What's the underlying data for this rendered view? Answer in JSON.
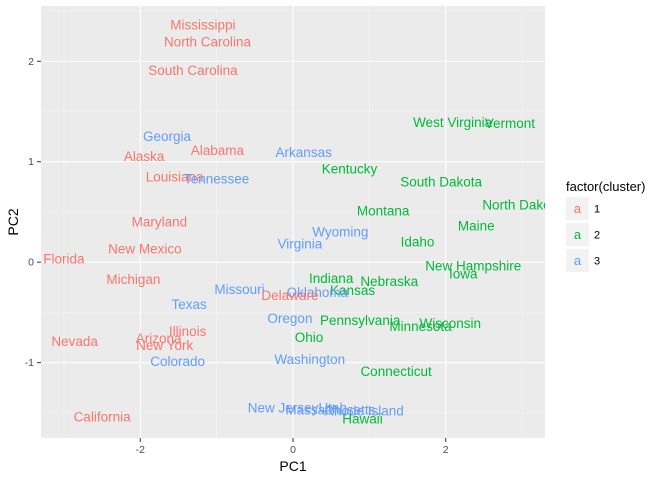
{
  "chart_data": {
    "type": "scatter",
    "xlabel": "PC1",
    "ylabel": "PC2",
    "xlim": [
      -3.3,
      3.3
    ],
    "ylim": [
      -1.75,
      2.55
    ],
    "x_ticks": [
      -2,
      0,
      2
    ],
    "x_tick_labels": [
      "-2",
      "0",
      "2"
    ],
    "y_ticks": [
      -1,
      0,
      1,
      2
    ],
    "y_tick_labels": [
      "-1",
      "0",
      "1",
      "2"
    ],
    "grid": true,
    "legend": {
      "title": "factor(cluster)",
      "placement": "right",
      "key_glyph": "a",
      "items": [
        {
          "label": "1",
          "color": "#F8766D"
        },
        {
          "label": "2",
          "color": "#00BA38"
        },
        {
          "label": "3",
          "color": "#619CFF"
        }
      ]
    },
    "colors": {
      "1": "#F8766D",
      "2": "#00BA38",
      "3": "#619CFF"
    },
    "points": [
      {
        "label": "Mississippi",
        "x": -1.18,
        "y": 2.36,
        "cluster": "1"
      },
      {
        "label": "North Carolina",
        "x": -1.12,
        "y": 2.19,
        "cluster": "1"
      },
      {
        "label": "South Carolina",
        "x": -1.31,
        "y": 1.91,
        "cluster": "1"
      },
      {
        "label": "Georgia",
        "x": -1.65,
        "y": 1.25,
        "cluster": "3"
      },
      {
        "label": "Alaska",
        "x": -1.95,
        "y": 1.05,
        "cluster": "1"
      },
      {
        "label": "Alabama",
        "x": -0.99,
        "y": 1.11,
        "cluster": "1"
      },
      {
        "label": "Arkansas",
        "x": 0.14,
        "y": 1.09,
        "cluster": "3"
      },
      {
        "label": "Louisiana",
        "x": -1.55,
        "y": 0.85,
        "cluster": "1"
      },
      {
        "label": "Tennessee",
        "x": -1.0,
        "y": 0.83,
        "cluster": "3"
      },
      {
        "label": "West Virginia",
        "x": 2.09,
        "y": 1.39,
        "cluster": "2"
      },
      {
        "label": "Vermont",
        "x": 2.84,
        "y": 1.38,
        "cluster": "2"
      },
      {
        "label": "Kentucky",
        "x": 0.74,
        "y": 0.93,
        "cluster": "2"
      },
      {
        "label": "South Dakota",
        "x": 1.94,
        "y": 0.8,
        "cluster": "2"
      },
      {
        "label": "North Dakota",
        "x": 3.0,
        "y": 0.57,
        "cluster": "2"
      },
      {
        "label": "Montana",
        "x": 1.18,
        "y": 0.51,
        "cluster": "2"
      },
      {
        "label": "Maryland",
        "x": -1.75,
        "y": 0.4,
        "cluster": "1"
      },
      {
        "label": "Wyoming",
        "x": 0.62,
        "y": 0.3,
        "cluster": "3"
      },
      {
        "label": "Maine",
        "x": 2.4,
        "y": 0.36,
        "cluster": "2"
      },
      {
        "label": "Virginia",
        "x": 0.09,
        "y": 0.18,
        "cluster": "3"
      },
      {
        "label": "Idaho",
        "x": 1.63,
        "y": 0.2,
        "cluster": "2"
      },
      {
        "label": "New Mexico",
        "x": -1.94,
        "y": 0.13,
        "cluster": "1"
      },
      {
        "label": "Florida",
        "x": -3.0,
        "y": 0.03,
        "cluster": "1"
      },
      {
        "label": "New Hampshire",
        "x": 2.36,
        "y": -0.04,
        "cluster": "2"
      },
      {
        "label": "Iowa",
        "x": 2.23,
        "y": -0.12,
        "cluster": "2"
      },
      {
        "label": "Michigan",
        "x": -2.09,
        "y": -0.17,
        "cluster": "1"
      },
      {
        "label": "Indiana",
        "x": 0.5,
        "y": -0.16,
        "cluster": "2"
      },
      {
        "label": "Nebraska",
        "x": 1.26,
        "y": -0.19,
        "cluster": "2"
      },
      {
        "label": "Kansas",
        "x": 0.78,
        "y": -0.28,
        "cluster": "2"
      },
      {
        "label": "Missouri",
        "x": -0.7,
        "y": -0.27,
        "cluster": "3"
      },
      {
        "label": "Oklahoma",
        "x": 0.32,
        "y": -0.3,
        "cluster": "3"
      },
      {
        "label": "Delaware",
        "x": -0.04,
        "y": -0.33,
        "cluster": "1"
      },
      {
        "label": "Texas",
        "x": -1.36,
        "y": -0.42,
        "cluster": "3"
      },
      {
        "label": "Oregon",
        "x": -0.04,
        "y": -0.56,
        "cluster": "3"
      },
      {
        "label": "Pennsylvania",
        "x": 0.88,
        "y": -0.58,
        "cluster": "2"
      },
      {
        "label": "Wisconsin",
        "x": 2.06,
        "y": -0.61,
        "cluster": "2"
      },
      {
        "label": "Minnesota",
        "x": 1.67,
        "y": -0.64,
        "cluster": "2"
      },
      {
        "label": "Illinois",
        "x": -1.38,
        "y": -0.69,
        "cluster": "1"
      },
      {
        "label": "Ohio",
        "x": 0.21,
        "y": -0.75,
        "cluster": "2"
      },
      {
        "label": "Arizona",
        "x": -1.76,
        "y": -0.76,
        "cluster": "1"
      },
      {
        "label": "Nevada",
        "x": -2.86,
        "y": -0.79,
        "cluster": "1"
      },
      {
        "label": "New York",
        "x": -1.68,
        "y": -0.83,
        "cluster": "1"
      },
      {
        "label": "Colorado",
        "x": -1.51,
        "y": -0.99,
        "cluster": "3"
      },
      {
        "label": "Washington",
        "x": 0.22,
        "y": -0.97,
        "cluster": "3"
      },
      {
        "label": "Connecticut",
        "x": 1.35,
        "y": -1.09,
        "cluster": "2"
      },
      {
        "label": "New Jersey",
        "x": -0.13,
        "y": -1.45,
        "cluster": "3"
      },
      {
        "label": "Massachusetts",
        "x": 0.49,
        "y": -1.47,
        "cluster": "3"
      },
      {
        "label": "Rhode Island",
        "x": 0.93,
        "y": -1.48,
        "cluster": "3"
      },
      {
        "label": "Utah",
        "x": 0.52,
        "y": -1.45,
        "cluster": "3"
      },
      {
        "label": "Hawaii",
        "x": 0.91,
        "y": -1.56,
        "cluster": "2"
      },
      {
        "label": "California",
        "x": -2.5,
        "y": -1.54,
        "cluster": "1"
      }
    ]
  }
}
